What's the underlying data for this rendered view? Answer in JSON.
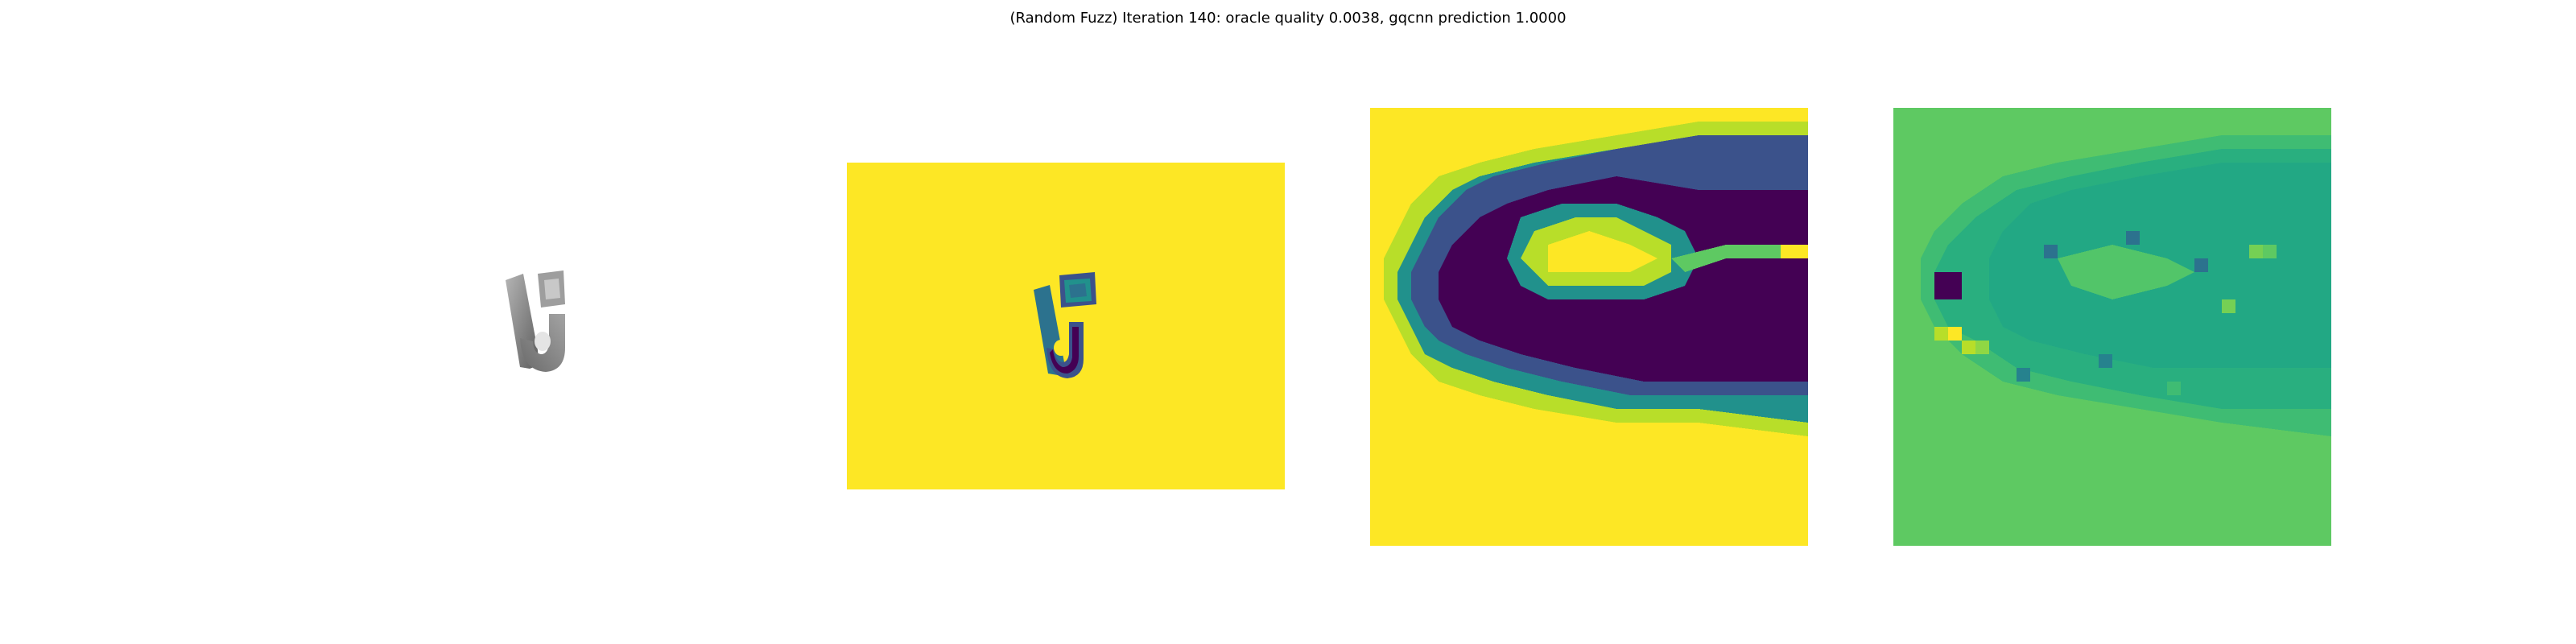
{
  "figure": {
    "title": "(Random Fuzz) Iteration 140: oracle quality 0.0038, gqcnn prediction 1.0000"
  },
  "panels": [
    {
      "id": "rendered-object",
      "content": "grayscale 3D render of object"
    },
    {
      "id": "depth-image",
      "content": "viridis depth image of object on background"
    },
    {
      "id": "depth-crop",
      "content": "zoomed viridis crop of object hook"
    },
    {
      "id": "fuzzed-crop",
      "content": "random fuzz perturbation crop"
    }
  ],
  "colors": {
    "viridis_yellow": "#fde725",
    "viridis_dark": "#440154",
    "viridis_indigo": "#3b528b",
    "viridis_teal": "#21918c",
    "viridis_green": "#5ec962",
    "object_gray": "#8a8a8a"
  }
}
